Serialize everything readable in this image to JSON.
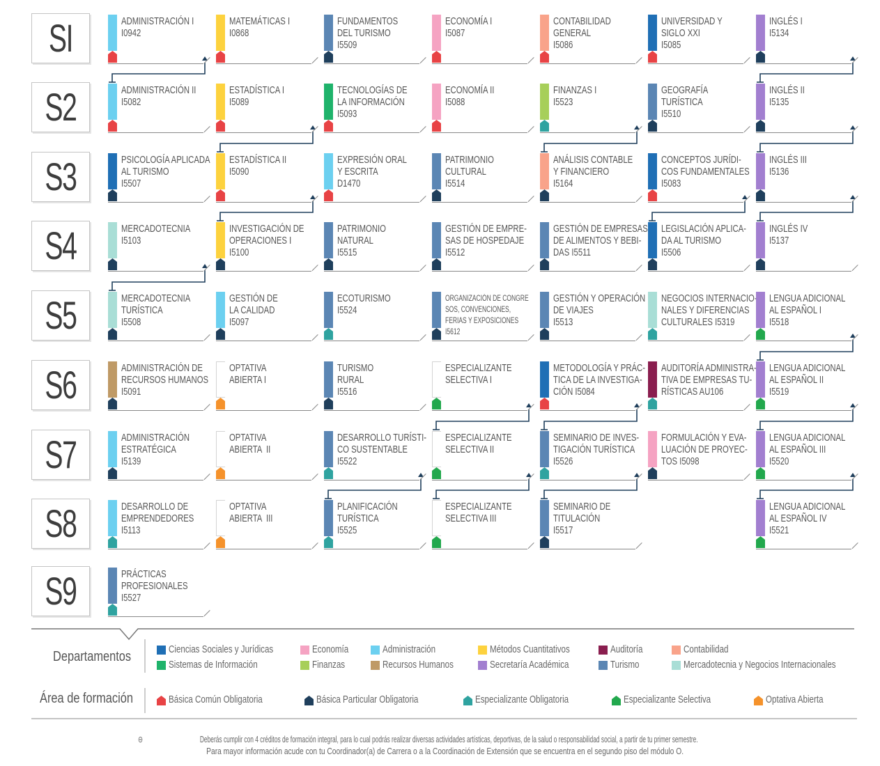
{
  "colors": {
    "ciencias_sociales_juridicas": "#1f6fb5",
    "sistemas_informacion": "#1fb36b",
    "economia": "#f5a3c2",
    "finanzas": "#a7cf5a",
    "administracion": "#6cd0f0",
    "recursos_humanos": "#bf9a66",
    "metodos_cuantitativos": "#fdd23e",
    "secretaria_academica": "#a27fd0",
    "auditoria": "#8a1e4f",
    "turismo": "#5b86b4",
    "contabilidad": "#f9a38a",
    "mercadotecnia_negocios": "#a9ded6",
    "basica_comun": "#e84345",
    "basica_particular": "#1f3f5c",
    "especializante_obligatoria": "#2fa3a0",
    "especializante_selectiva": "#22a84d",
    "optativa_abierta": "#f5922b"
  },
  "semesters": [
    "SI",
    "S2",
    "S3",
    "S4",
    "S5",
    "S6",
    "S7",
    "S8",
    "S9"
  ],
  "courses": [
    {
      "sem": 0,
      "col": 0,
      "lines": [
        "ADMINISTRACIÓN I",
        "I0942"
      ],
      "dept": "administracion",
      "area": "basica_comun"
    },
    {
      "sem": 0,
      "col": 1,
      "lines": [
        "MATEMÁTICAS I",
        "I0868"
      ],
      "dept": "metodos_cuantitativos",
      "area": "basica_comun"
    },
    {
      "sem": 0,
      "col": 2,
      "lines": [
        "FUNDAMENTOS",
        "DEL TURISMO",
        "I5509"
      ],
      "dept": "turismo",
      "area": "basica_particular"
    },
    {
      "sem": 0,
      "col": 3,
      "lines": [
        "ECONOMÍA I",
        "I5087"
      ],
      "dept": "economia",
      "area": "basica_comun"
    },
    {
      "sem": 0,
      "col": 4,
      "lines": [
        "CONTABILIDAD",
        "GENERAL",
        "I5086"
      ],
      "dept": "contabilidad",
      "area": "basica_comun"
    },
    {
      "sem": 0,
      "col": 5,
      "lines": [
        "UNIVERSIDAD Y",
        "SIGLO XXI",
        "I5085"
      ],
      "dept": "ciencias_sociales_juridicas",
      "area": "basica_comun"
    },
    {
      "sem": 0,
      "col": 6,
      "lines": [
        "INGLÉS I",
        "I5134"
      ],
      "dept": "secretaria_academica",
      "area": "basica_particular"
    },
    {
      "sem": 1,
      "col": 0,
      "lines": [
        "ADMINISTRACIÓN II",
        "I5082"
      ],
      "dept": "administracion",
      "area": "basica_comun"
    },
    {
      "sem": 1,
      "col": 1,
      "lines": [
        "ESTADÍSTICA I",
        "I5089"
      ],
      "dept": "metodos_cuantitativos",
      "area": "basica_comun"
    },
    {
      "sem": 1,
      "col": 2,
      "lines": [
        "TECNOLOGÍAS DE",
        "LA INFORMACIÓN",
        "I5093"
      ],
      "dept": "sistemas_informacion",
      "area": "basica_comun"
    },
    {
      "sem": 1,
      "col": 3,
      "lines": [
        "ECONOMÍA II",
        "I5088"
      ],
      "dept": "economia",
      "area": "basica_comun"
    },
    {
      "sem": 1,
      "col": 4,
      "lines": [
        "FINANZAS I",
        "I5523"
      ],
      "dept": "finanzas",
      "area": "especializante_obligatoria"
    },
    {
      "sem": 1,
      "col": 5,
      "lines": [
        "GEOGRAFÍA",
        "TURÍSTICA",
        "I5510"
      ],
      "dept": "turismo",
      "area": "basica_particular"
    },
    {
      "sem": 1,
      "col": 6,
      "lines": [
        "INGLÉS II",
        "I5135"
      ],
      "dept": "secretaria_academica",
      "area": "basica_particular"
    },
    {
      "sem": 2,
      "col": 0,
      "lines": [
        "PSICOLOGÍA APLICADA",
        "AL TURISMO",
        "I5507"
      ],
      "dept": "ciencias_sociales_juridicas",
      "area": "basica_particular"
    },
    {
      "sem": 2,
      "col": 1,
      "lines": [
        "ESTADÍSTICA II",
        "I5090"
      ],
      "dept": "metodos_cuantitativos",
      "area": "basica_comun"
    },
    {
      "sem": 2,
      "col": 2,
      "lines": [
        "EXPRESIÓN ORAL",
        "Y ESCRITA",
        "D1470"
      ],
      "dept": "administracion",
      "area": "basica_comun"
    },
    {
      "sem": 2,
      "col": 3,
      "lines": [
        "PATRIMONIO",
        "CULTURAL",
        "I5514"
      ],
      "dept": "turismo",
      "area": "basica_particular"
    },
    {
      "sem": 2,
      "col": 4,
      "lines": [
        "ANÁLISIS CONTABLE",
        "Y FINANCIERO",
        "I5164"
      ],
      "dept": "contabilidad",
      "area": "basica_particular"
    },
    {
      "sem": 2,
      "col": 5,
      "lines": [
        "CONCEPTOS JURÍDI-",
        "COS FUNDAMENTALES",
        "I5083"
      ],
      "dept": "ciencias_sociales_juridicas",
      "area": "basica_comun"
    },
    {
      "sem": 2,
      "col": 6,
      "lines": [
        "INGLÉS III",
        "I5136"
      ],
      "dept": "secretaria_academica",
      "area": "basica_particular"
    },
    {
      "sem": 3,
      "col": 0,
      "lines": [
        "MERCADOTECNIA",
        "I5103"
      ],
      "dept": "mercadotecnia_negocios",
      "area": "basica_particular"
    },
    {
      "sem": 3,
      "col": 1,
      "lines": [
        "INVESTIGACIÓN DE",
        "OPERACIONES I",
        "I5100"
      ],
      "dept": "metodos_cuantitativos",
      "area": "basica_particular"
    },
    {
      "sem": 3,
      "col": 2,
      "lines": [
        "PATRIMONIO",
        "NATURAL",
        "I5515"
      ],
      "dept": "turismo",
      "area": "basica_particular"
    },
    {
      "sem": 3,
      "col": 3,
      "lines": [
        "GESTIÓN DE EMPRE-",
        "SAS DE HOSPEDAJE",
        "I5512"
      ],
      "dept": "turismo",
      "area": "basica_particular"
    },
    {
      "sem": 3,
      "col": 4,
      "lines": [
        "GESTIÓN DE EMPRESAS",
        "DE ALIMENTOS Y BEBI-",
        "DAS I5511"
      ],
      "dept": "turismo",
      "area": "basica_particular"
    },
    {
      "sem": 3,
      "col": 5,
      "lines": [
        "LEGISLACIÓN APLICA-",
        "DA AL TURISMO",
        "I5506"
      ],
      "dept": "ciencias_sociales_juridicas",
      "area": "basica_particular"
    },
    {
      "sem": 3,
      "col": 6,
      "lines": [
        "INGLÉS IV",
        "I5137"
      ],
      "dept": "secretaria_academica",
      "area": "basica_particular"
    },
    {
      "sem": 4,
      "col": 0,
      "lines": [
        "MERCADOTECNIA",
        "TURÍSTICA",
        "I5508"
      ],
      "dept": "mercadotecnia_negocios",
      "area": "basica_particular"
    },
    {
      "sem": 4,
      "col": 1,
      "lines": [
        "GESTIÓN DE",
        "LA CALIDAD",
        "I5097"
      ],
      "dept": "administracion",
      "area": "basica_particular"
    },
    {
      "sem": 4,
      "col": 2,
      "lines": [
        "ECOTURISMO",
        "I5524"
      ],
      "dept": "turismo",
      "area": "especializante_obligatoria"
    },
    {
      "sem": 4,
      "col": 3,
      "lines": [
        "ORGANIZACIÓN DE CONGRE",
        "SOS, CONVENCIONES,",
        "FERIAS Y EXPOSICIONES",
        "I5612"
      ],
      "dept": "turismo",
      "area": "basica_particular",
      "small": true
    },
    {
      "sem": 4,
      "col": 4,
      "lines": [
        "GESTIÓN Y OPERACIÓN",
        "DE VIAJES",
        "I5513"
      ],
      "dept": "turismo",
      "area": "basica_particular"
    },
    {
      "sem": 4,
      "col": 5,
      "lines": [
        "NEGOCIOS INTERNACIO-",
        "NALES Y DIFERENCIAS",
        "CULTURALES I5319"
      ],
      "dept": "mercadotecnia_negocios",
      "area": "especializante_obligatoria"
    },
    {
      "sem": 4,
      "col": 6,
      "lines": [
        "LENGUA ADICIONAL",
        "AL ESPAÑOL I",
        "I5518"
      ],
      "dept": "secretaria_academica",
      "area": "especializante_selectiva"
    },
    {
      "sem": 5,
      "col": 0,
      "lines": [
        "ADMINISTRACIÓN DE",
        "RECURSOS HUMANOS",
        "I5091"
      ],
      "dept": "recursos_humanos",
      "area": "basica_particular"
    },
    {
      "sem": 5,
      "col": 1,
      "lines": [
        "OPTATIVA",
        "ABIERTA I"
      ],
      "dept": "",
      "area": "optativa_abierta"
    },
    {
      "sem": 5,
      "col": 2,
      "lines": [
        "TURISMO",
        "RURAL",
        "I5516"
      ],
      "dept": "turismo",
      "area": "basica_particular"
    },
    {
      "sem": 5,
      "col": 3,
      "lines": [
        "ESPECIALIZANTE",
        "SELECTIVA I"
      ],
      "dept": "",
      "area": "especializante_selectiva"
    },
    {
      "sem": 5,
      "col": 4,
      "lines": [
        "METODOLOGÍA Y PRÁC-",
        "TICA DE LA INVESTIGA-",
        "CIÓN I5084"
      ],
      "dept": "ciencias_sociales_juridicas",
      "area": "basica_comun"
    },
    {
      "sem": 5,
      "col": 5,
      "lines": [
        "AUDITORÍA ADMINISTRA-",
        "TIVA DE EMPRESAS TU-",
        "RÍSTICAS AU106"
      ],
      "dept": "auditoria",
      "area": "especializante_obligatoria"
    },
    {
      "sem": 5,
      "col": 6,
      "lines": [
        "LENGUA ADICIONAL",
        "AL ESPAÑOL II",
        "I5519"
      ],
      "dept": "secretaria_academica",
      "area": "especializante_selectiva"
    },
    {
      "sem": 6,
      "col": 0,
      "lines": [
        "ADMINISTRACIÓN",
        "ESTRATÉGICA",
        "I5139"
      ],
      "dept": "administracion",
      "area": "basica_particular"
    },
    {
      "sem": 6,
      "col": 1,
      "lines": [
        "OPTATIVA",
        "ABIERTA  II"
      ],
      "dept": "",
      "area": "optativa_abierta"
    },
    {
      "sem": 6,
      "col": 2,
      "lines": [
        "DESARROLLO TURÍSTI-",
        "CO SUSTENTABLE",
        "I5522"
      ],
      "dept": "turismo",
      "area": "especializante_obligatoria"
    },
    {
      "sem": 6,
      "col": 3,
      "lines": [
        "ESPECIALIZANTE",
        "SELECTIVA II"
      ],
      "dept": "",
      "area": "especializante_selectiva"
    },
    {
      "sem": 6,
      "col": 4,
      "lines": [
        "SEMINARIO DE INVES-",
        "TIGACIÓN TURÍSTICA",
        "I5526"
      ],
      "dept": "turismo",
      "area": "especializante_obligatoria"
    },
    {
      "sem": 6,
      "col": 5,
      "lines": [
        "FORMULACIÓN Y EVA-",
        "LUACIÓN DE PROYEC-",
        "TOS I5098"
      ],
      "dept": "economia",
      "area": "basica_particular"
    },
    {
      "sem": 6,
      "col": 6,
      "lines": [
        "LENGUA ADICIONAL",
        "AL ESPAÑOL III",
        "I5520"
      ],
      "dept": "secretaria_academica",
      "area": "especializante_selectiva"
    },
    {
      "sem": 7,
      "col": 0,
      "lines": [
        "DESARROLLO DE",
        "EMPRENDEDORES",
        "I5113"
      ],
      "dept": "administracion",
      "area": "especializante_obligatoria"
    },
    {
      "sem": 7,
      "col": 1,
      "lines": [
        "OPTATIVA",
        "ABIERTA  III"
      ],
      "dept": "",
      "area": "optativa_abierta"
    },
    {
      "sem": 7,
      "col": 2,
      "lines": [
        "PLANIFICACIÓN",
        "TURÍSTICA",
        "I5525"
      ],
      "dept": "turismo",
      "area": "especializante_obligatoria"
    },
    {
      "sem": 7,
      "col": 3,
      "lines": [
        "ESPECIALIZANTE",
        "SELECTIVA III"
      ],
      "dept": "",
      "area": "especializante_selectiva"
    },
    {
      "sem": 7,
      "col": 4,
      "lines": [
        "SEMINARIO DE",
        "TITULACIÓN",
        "I5517"
      ],
      "dept": "turismo",
      "area": "basica_particular"
    },
    {
      "sem": 7,
      "col": 6,
      "lines": [
        "LENGUA ADICIONAL",
        "AL ESPAÑOL IV",
        "I5521"
      ],
      "dept": "secretaria_academica",
      "area": "especializante_selectiva"
    },
    {
      "sem": 8,
      "col": 0,
      "lines": [
        "PRÁCTICAS",
        "PROFESIONALES",
        "I5527"
      ],
      "dept": "turismo",
      "area": "especializante_obligatoria"
    }
  ],
  "prerequisites": [
    {
      "from": [
        0,
        0
      ],
      "to": [
        1,
        0
      ]
    },
    {
      "from": [
        0,
        6
      ],
      "to": [
        1,
        6
      ]
    },
    {
      "from": [
        1,
        1
      ],
      "to": [
        2,
        1
      ]
    },
    {
      "from": [
        1,
        4
      ],
      "to": [
        2,
        4
      ]
    },
    {
      "from": [
        1,
        6
      ],
      "to": [
        2,
        6
      ]
    },
    {
      "from": [
        2,
        1
      ],
      "to": [
        3,
        1
      ]
    },
    {
      "from": [
        2,
        5
      ],
      "to": [
        3,
        5
      ]
    },
    {
      "from": [
        2,
        6
      ],
      "to": [
        3,
        6
      ]
    },
    {
      "from": [
        3,
        0
      ],
      "to": [
        4,
        0
      ]
    },
    {
      "from": [
        4,
        6
      ],
      "to": [
        5,
        6
      ]
    },
    {
      "from": [
        5,
        3
      ],
      "to": [
        6,
        3
      ]
    },
    {
      "from": [
        5,
        4
      ],
      "to": [
        6,
        4
      ]
    },
    {
      "from": [
        5,
        6
      ],
      "to": [
        6,
        6
      ]
    },
    {
      "from": [
        6,
        2
      ],
      "to": [
        7,
        2
      ]
    },
    {
      "from": [
        6,
        3
      ],
      "to": [
        7,
        3
      ]
    },
    {
      "from": [
        6,
        4
      ],
      "to": [
        7,
        4
      ]
    },
    {
      "from": [
        6,
        6
      ],
      "to": [
        7,
        6
      ]
    }
  ],
  "legend": {
    "departamentos_title": "Departamentos",
    "departamentos": [
      {
        "label": "Ciencias Sociales y Jurídicas",
        "color_key": "ciencias_sociales_juridicas"
      },
      {
        "label": "Sistemas de Información",
        "color_key": "sistemas_informacion"
      },
      {
        "label": "Economía",
        "color_key": "economia"
      },
      {
        "label": "Finanzas",
        "color_key": "finanzas"
      },
      {
        "label": "Administración",
        "color_key": "administracion"
      },
      {
        "label": "Recursos Humanos",
        "color_key": "recursos_humanos"
      },
      {
        "label": "Métodos Cuantitativos",
        "color_key": "metodos_cuantitativos"
      },
      {
        "label": "Secretaría Académica",
        "color_key": "secretaria_academica"
      },
      {
        "label": "Auditoría",
        "color_key": "auditoria"
      },
      {
        "label": "Turismo",
        "color_key": "turismo"
      },
      {
        "label": "Contabilidad",
        "color_key": "contabilidad"
      },
      {
        "label": "Mercadotecnia y Negocios Internacionales",
        "color_key": "mercadotecnia_negocios"
      }
    ],
    "area_title": "Área de formación",
    "areas": [
      {
        "label": "Básica Común Obligatoria",
        "color_key": "basica_comun"
      },
      {
        "label": "Básica Particular Obligatoria",
        "color_key": "basica_particular"
      },
      {
        "label": "Especializante Obligatoria",
        "color_key": "especializante_obligatoria"
      },
      {
        "label": "Especializante Selectiva",
        "color_key": "especializante_selectiva"
      },
      {
        "label": "Optativa Abierta",
        "color_key": "optativa_abierta"
      }
    ]
  },
  "notes": [
    "Deberás cumplir con 4 créditos de formación integral, para lo cual podrás realizar diversas actividades artísticas, deportivas, de la salud o responsabilidad social, a partir de tu primer semestre.",
    "Para mayor información acude con tu Coordinador(a) de Carrera o a la Coordinación de Extensión que se encuentra en el segundo piso del módulo O."
  ]
}
